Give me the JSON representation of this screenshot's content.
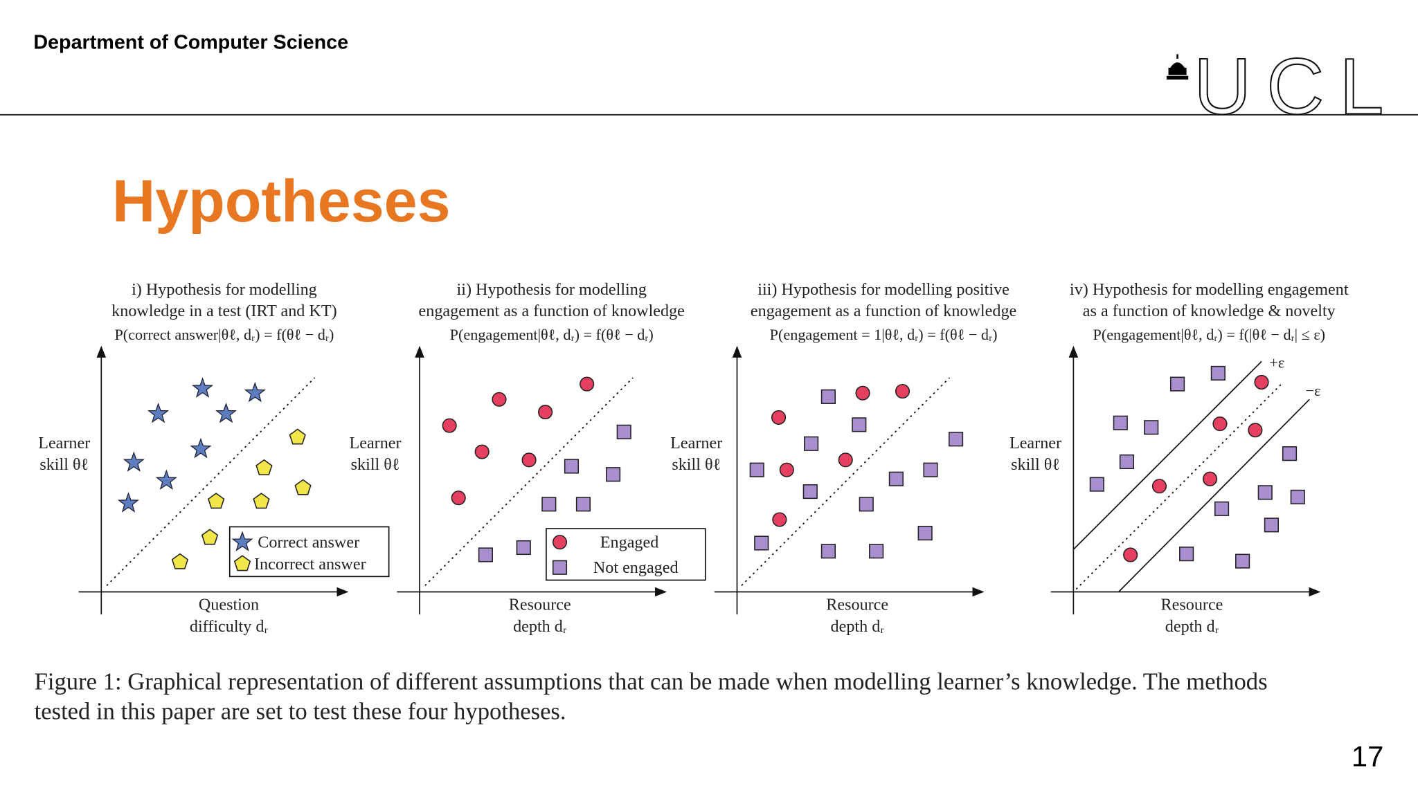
{
  "header": {
    "department": "Department of Computer Science",
    "logo": "UCL"
  },
  "title": "Hypotheses",
  "figure": {
    "panels": [
      {
        "title": [
          "i) Hypothesis for modelling",
          "knowledge in a test (IRT and KT)"
        ],
        "formula": "P(correct answer|θℓ, dᵣ) = f(θℓ − dᵣ)",
        "y_label": [
          "Learner",
          "skill θℓ"
        ],
        "x_label": [
          "Question",
          "difficulty dᵣ"
        ],
        "legend": [
          "Correct answer",
          "Incorrect answer"
        ]
      },
      {
        "title": [
          "ii) Hypothesis for modelling",
          "engagement as a function of knowledge"
        ],
        "formula": "P(engagement|θℓ, dᵣ) = f(θℓ − dᵣ)",
        "y_label": [
          "Learner",
          "skill θℓ"
        ],
        "x_label": [
          "Resource",
          "depth dᵣ"
        ],
        "legend": [
          "Engaged",
          "Not engaged"
        ]
      },
      {
        "title": [
          "iii) Hypothesis for modelling positive",
          "engagement as a function of knowledge"
        ],
        "formula": "P(engagement = 1|θℓ, dᵣ) = f(θℓ − dᵣ)",
        "y_label": [
          "Learner",
          "skill θℓ"
        ],
        "x_label": [
          "Resource",
          "depth dᵣ"
        ]
      },
      {
        "title": [
          "iv) Hypothesis for modelling engagement",
          "as a function of knowledge & novelty"
        ],
        "formula": "P(engagement|θℓ, dᵣ) = f(|θℓ − dᵣ| ≤ ε)",
        "y_label": [
          "Learner",
          "skill θℓ"
        ],
        "x_label": [
          "Resource",
          "depth dᵣ"
        ],
        "annotations": [
          "+ε",
          "−ε"
        ]
      }
    ],
    "caption": [
      "Figure 1: Graphical representation of different assumptions that can be made when modelling learner’s knowledge. The methods",
      "tested in this paper are set to test these four hypotheses."
    ]
  },
  "page_number": 17
}
